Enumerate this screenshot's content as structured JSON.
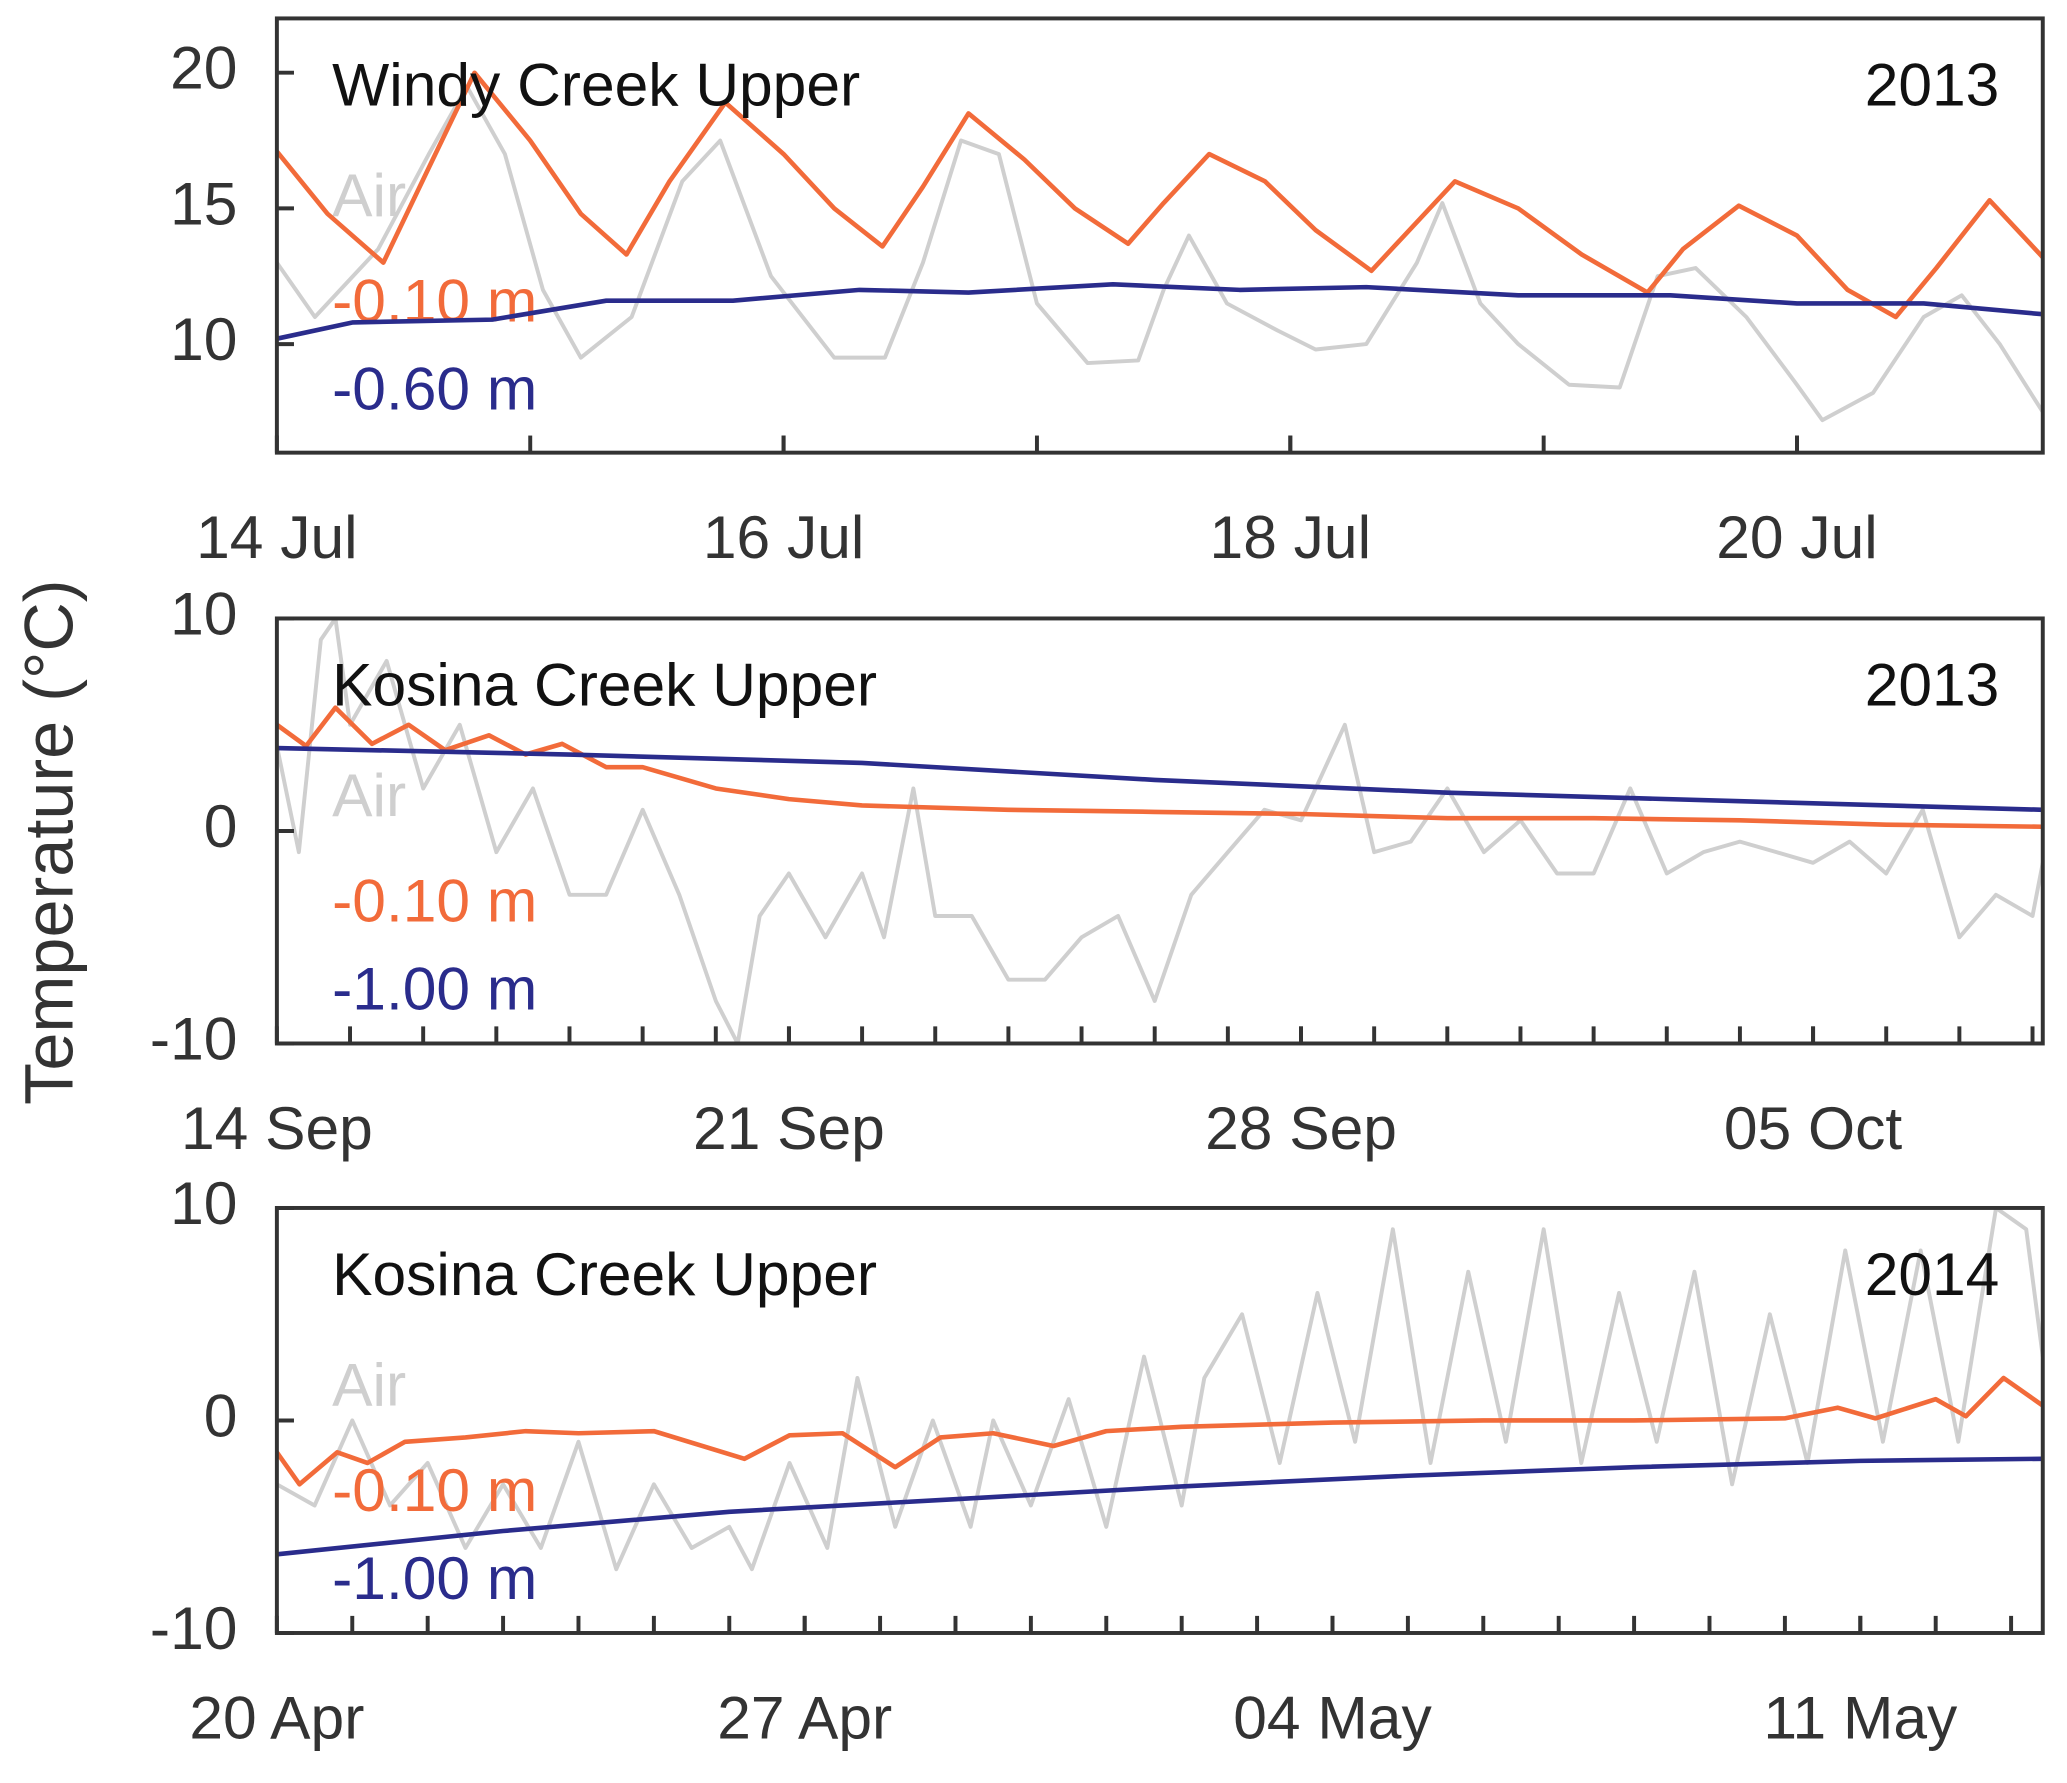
{
  "ylabel": "Temperature (°C)",
  "chart_data": [
    {
      "type": "line",
      "title": "Windy Creek Upper",
      "year": "2013",
      "legend": "upper left",
      "grid": false,
      "xlim": [
        0,
        6.97
      ],
      "xticks": [
        {
          "value": 0,
          "label": "14 Jul"
        },
        {
          "value": 2,
          "label": "16 Jul"
        },
        {
          "value": 4,
          "label": "18 Jul"
        },
        {
          "value": 6,
          "label": "20 Jul"
        }
      ],
      "xminor_step": 1,
      "ylim": [
        6,
        22
      ],
      "yticks": [
        10,
        15,
        20
      ],
      "series": [
        {
          "name": "Air",
          "color": "#cfcfcf",
          "x": [
            0,
            0.15,
            0.4,
            0.6,
            0.75,
            0.9,
            1.05,
            1.2,
            1.4,
            1.6,
            1.75,
            1.95,
            2.2,
            2.4,
            2.55,
            2.7,
            2.85,
            3.0,
            3.2,
            3.4,
            3.5,
            3.6,
            3.75,
            3.95,
            4.1,
            4.3,
            4.5,
            4.6,
            4.75,
            4.9,
            5.1,
            5.3,
            5.45,
            5.6,
            5.8,
            6.0,
            6.1,
            6.3,
            6.5,
            6.65,
            6.8,
            6.97
          ],
          "values": [
            13,
            11,
            13.5,
            17,
            19.5,
            17,
            12,
            9.5,
            11,
            16,
            17.5,
            12.5,
            9.5,
            9.5,
            13,
            17.5,
            17,
            11.5,
            9.3,
            9.4,
            12,
            14,
            11.5,
            10.5,
            9.8,
            10,
            13,
            15.2,
            11.5,
            10,
            8.5,
            8.4,
            12.5,
            12.8,
            11,
            8.5,
            7.2,
            8.2,
            11,
            11.8,
            10,
            7.5
          ]
        },
        {
          "name": "-0.10 m",
          "color": "#f26b3a",
          "x": [
            0,
            0.2,
            0.42,
            0.6,
            0.78,
            1.0,
            1.2,
            1.38,
            1.55,
            1.77,
            2.0,
            2.2,
            2.39,
            2.55,
            2.73,
            2.95,
            3.15,
            3.36,
            3.5,
            3.68,
            3.9,
            4.1,
            4.32,
            4.45,
            4.65,
            4.9,
            5.15,
            5.41,
            5.55,
            5.77,
            6.0,
            6.2,
            6.39,
            6.55,
            6.76,
            6.97
          ],
          "values": [
            17.1,
            14.8,
            13.0,
            16.5,
            20.0,
            17.5,
            14.8,
            13.3,
            16.0,
            18.9,
            17.0,
            15.0,
            13.6,
            15.8,
            18.5,
            16.8,
            15.0,
            13.7,
            15.2,
            17.0,
            16.0,
            14.2,
            12.7,
            14.0,
            16.0,
            15.0,
            13.3,
            11.9,
            13.5,
            15.1,
            14.0,
            12.0,
            11.0,
            12.8,
            15.3,
            13.2
          ]
        },
        {
          "name": "-0.60 m",
          "color": "#2a2c8c",
          "x": [
            0,
            0.3,
            0.85,
            1.3,
            1.8,
            2.3,
            2.73,
            3.3,
            3.8,
            4.3,
            4.9,
            5.5,
            6.0,
            6.5,
            6.97
          ],
          "values": [
            10.2,
            10.8,
            10.9,
            11.6,
            11.6,
            12.0,
            11.9,
            12.2,
            12.0,
            12.1,
            11.8,
            11.8,
            11.5,
            11.5,
            11.1
          ]
        }
      ]
    },
    {
      "type": "line",
      "title": "Kosina Creek Upper",
      "year": "2013",
      "legend": "upper left",
      "grid": false,
      "xlim": [
        0,
        24.14
      ],
      "xticks": [
        {
          "value": 0,
          "label": "14 Sep"
        },
        {
          "value": 7,
          "label": "21 Sep"
        },
        {
          "value": 14,
          "label": "28 Sep"
        },
        {
          "value": 21,
          "label": "05 Oct"
        }
      ],
      "xminor_step": 1,
      "ylim": [
        -10,
        10
      ],
      "yticks": [
        -10,
        0,
        10
      ],
      "series": [
        {
          "name": "Air",
          "color": "#cfcfcf",
          "x": [
            0,
            0.3,
            0.6,
            0.8,
            1,
            1.5,
            2,
            2.5,
            3,
            3.5,
            4,
            4.5,
            5,
            5.5,
            6,
            6.3,
            6.6,
            7,
            7.5,
            8,
            8.3,
            8.7,
            9,
            9.5,
            10,
            10.5,
            11,
            11.5,
            12,
            12.5,
            13,
            13.5,
            14,
            14.6,
            15,
            15.5,
            16,
            16.5,
            17,
            17.5,
            18,
            18.5,
            19,
            19.5,
            20,
            20.5,
            21,
            21.5,
            22,
            22.5,
            23,
            23.5,
            24,
            24.14
          ],
          "values": [
            4,
            -1,
            9,
            10,
            5,
            8,
            2,
            5,
            -1,
            2,
            -3,
            -3,
            1,
            -3,
            -8,
            -10,
            -4,
            -2,
            -5,
            -2,
            -5,
            2,
            -4,
            -4,
            -7,
            -7,
            -5,
            -4,
            -8,
            -3,
            -1,
            1,
            0.5,
            5,
            -1,
            -0.5,
            2,
            -1,
            0.5,
            -2,
            -2,
            2,
            -2,
            -1,
            -0.5,
            -1,
            -1.5,
            -0.5,
            -2,
            1,
            -5,
            -3,
            -4,
            -1.5
          ]
        },
        {
          "name": "-0.10 m",
          "color": "#f26b3a",
          "x": [
            0,
            0.4,
            0.8,
            1.3,
            1.8,
            2.3,
            2.9,
            3.4,
            3.9,
            4.5,
            5,
            6,
            7,
            8,
            10,
            12,
            14,
            16,
            18,
            20,
            22,
            24.14
          ],
          "values": [
            5,
            4,
            5.8,
            4.1,
            5,
            3.8,
            4.5,
            3.6,
            4.1,
            3.0,
            3,
            2,
            1.5,
            1.2,
            1,
            0.9,
            0.8,
            0.6,
            0.6,
            0.5,
            0.3,
            0.2
          ]
        },
        {
          "name": "-1.00 m",
          "color": "#2a2c8c",
          "x": [
            0,
            4,
            8,
            12,
            16,
            20,
            24.14
          ],
          "values": [
            3.9,
            3.6,
            3.2,
            2.4,
            1.8,
            1.4,
            1.0
          ]
        }
      ]
    },
    {
      "type": "line",
      "title": "Kosina Creek Upper",
      "year": "2014",
      "legend": "upper left",
      "grid": false,
      "xlim": [
        0,
        23.42
      ],
      "xticks": [
        {
          "value": 0,
          "label": "20 Apr"
        },
        {
          "value": 7,
          "label": "27 Apr"
        },
        {
          "value": 14,
          "label": "04 May"
        },
        {
          "value": 21,
          "label": "11 May"
        }
      ],
      "xminor_step": 1,
      "ylim": [
        -10,
        10
      ],
      "yticks": [
        -10,
        0,
        10
      ],
      "series": [
        {
          "name": "Air",
          "color": "#cfcfcf",
          "x": [
            0,
            0.5,
            1,
            1.5,
            2,
            2.5,
            3,
            3.5,
            4,
            4.5,
            5,
            5.5,
            6,
            6.3,
            6.8,
            7.3,
            7.7,
            8.2,
            8.7,
            9.2,
            9.5,
            10,
            10.5,
            11,
            11.5,
            12,
            12.3,
            12.8,
            13.3,
            13.8,
            14.3,
            14.8,
            15.3,
            15.8,
            16.3,
            16.8,
            17.3,
            17.8,
            18.3,
            18.8,
            19.3,
            19.8,
            20.3,
            20.8,
            21.3,
            21.8,
            22.3,
            22.8,
            23.2,
            23.42
          ],
          "values": [
            -3,
            -4,
            0,
            -4,
            -2,
            -6,
            -3,
            -6,
            -1,
            -7,
            -3,
            -6,
            -5,
            -7,
            -2,
            -6,
            2,
            -5,
            0,
            -5,
            0,
            -4,
            1,
            -5,
            3,
            -4,
            2,
            5,
            -2,
            6,
            -1,
            9,
            -2,
            7,
            -1,
            9,
            -2,
            6,
            -1,
            7,
            -3,
            5,
            -2,
            8,
            -1,
            8,
            -1,
            10,
            9,
            3
          ]
        },
        {
          "name": "-0.10 m",
          "color": "#f26b3a",
          "x": [
            0,
            0.3,
            0.8,
            1.2,
            1.7,
            2.5,
            3.3,
            4,
            5,
            6.2,
            6.8,
            7.5,
            8.2,
            8.8,
            9.5,
            10.3,
            11,
            12,
            14,
            16,
            18,
            20,
            20.7,
            21.2,
            22,
            22.4,
            22.9,
            23.42
          ],
          "values": [
            -1.5,
            -3,
            -1.5,
            -2,
            -1,
            -0.8,
            -0.5,
            -0.6,
            -0.5,
            -1.8,
            -0.7,
            -0.6,
            -2.2,
            -0.8,
            -0.6,
            -1.2,
            -0.5,
            -0.3,
            -0.1,
            0,
            0,
            0.1,
            0.6,
            0.1,
            1,
            0.2,
            2,
            0.7
          ]
        },
        {
          "name": "-1.00 m",
          "color": "#2a2c8c",
          "x": [
            0,
            3,
            6,
            9,
            12,
            15,
            18,
            21,
            23.42
          ],
          "values": [
            -6.3,
            -5.2,
            -4.3,
            -3.7,
            -3.1,
            -2.6,
            -2.2,
            -1.9,
            -1.8
          ]
        }
      ]
    }
  ]
}
